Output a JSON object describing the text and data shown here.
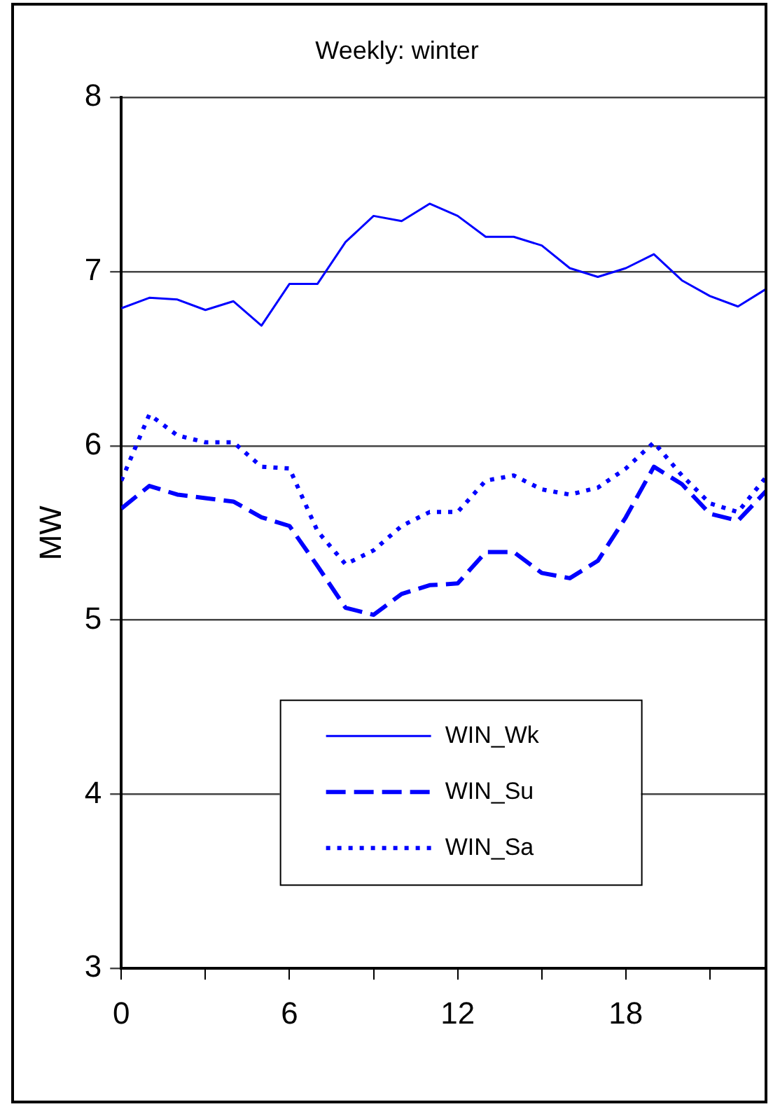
{
  "chart_data": {
    "type": "line",
    "title": "Weekly: winter",
    "ylabel": "MW",
    "x": [
      0,
      1,
      2,
      3,
      4,
      5,
      6,
      7,
      8,
      9,
      10,
      11,
      12,
      13,
      14,
      15,
      16,
      17,
      18,
      19,
      20,
      21,
      22,
      23
    ],
    "series": [
      {
        "name": "WIN_Wk",
        "color": "#0000ff",
        "line_style": "solid",
        "values": [
          6.79,
          6.85,
          6.84,
          6.78,
          6.83,
          6.69,
          6.93,
          6.93,
          7.17,
          7.32,
          7.29,
          7.39,
          7.32,
          7.2,
          7.2,
          7.15,
          7.02,
          6.97,
          7.02,
          7.1,
          6.95,
          6.86,
          6.8,
          6.9
        ]
      },
      {
        "name": "WIN_Su",
        "color": "#0000ff",
        "line_style": "dashed",
        "values": [
          5.64,
          5.77,
          5.72,
          5.7,
          5.68,
          5.59,
          5.54,
          5.31,
          5.07,
          5.03,
          5.15,
          5.2,
          5.21,
          5.39,
          5.39,
          5.27,
          5.24,
          5.34,
          5.59,
          5.88,
          5.78,
          5.61,
          5.57,
          5.74
        ]
      },
      {
        "name": "WIN_Sa",
        "color": "#0000ff",
        "line_style": "dotted",
        "values": [
          5.8,
          6.18,
          6.06,
          6.02,
          6.02,
          5.88,
          5.87,
          5.51,
          5.32,
          5.4,
          5.54,
          5.62,
          5.62,
          5.8,
          5.83,
          5.75,
          5.72,
          5.76,
          5.87,
          6.02,
          5.83,
          5.67,
          5.62,
          5.82
        ]
      }
    ],
    "xlim": [
      0,
      23
    ],
    "xticks": [
      0,
      {
        "value": 3,
        "label": null
      },
      6,
      {
        "value": 9,
        "label": null
      },
      12,
      {
        "value": 15,
        "label": null
      },
      18,
      {
        "value": 21,
        "label": null
      }
    ],
    "ylim": [
      3,
      8
    ],
    "yticks": [
      3,
      4,
      5,
      6,
      7,
      8
    ],
    "grid": "y",
    "legend": "bottom",
    "marker": "none"
  }
}
